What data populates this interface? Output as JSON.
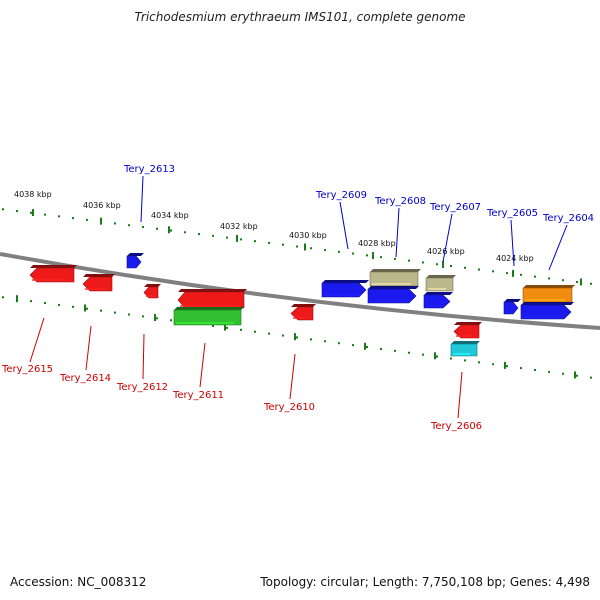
{
  "title": "Trichodesmium erythraeum IMS101, complete genome",
  "footer": {
    "accession": "Accession: NC_008312",
    "summary": "Topology: circular; Length: 7,750,108 bp; Genes: 4,498"
  },
  "colors": {
    "backbone": "#808080",
    "upper_label": "#0000cc",
    "lower_label": "#cc0000",
    "ruler": "#1a7a1a"
  },
  "ruler_labels": [
    {
      "text": "4038 kbp"
    },
    {
      "text": "4036 kbp"
    },
    {
      "text": "4034 kbp"
    },
    {
      "text": "4032 kbp"
    },
    {
      "text": "4030 kbp"
    },
    {
      "text": "4028 kbp"
    },
    {
      "text": "4026 kbp"
    },
    {
      "text": "4024 kbp"
    }
  ],
  "genes": [
    {
      "id": "Tery_2613",
      "color": "#1a1aee"
    },
    {
      "id": "Tery_2609",
      "color": "#1a1aee"
    },
    {
      "id": "Tery_2608",
      "color": "#bdb78c"
    },
    {
      "id": "Tery_2607",
      "color": "#bdb78c"
    },
    {
      "id": "Tery_2605",
      "color": "#1a1aee"
    },
    {
      "id": "Tery_2604",
      "color": "#f08c10"
    },
    {
      "id": "Tery_2615",
      "color": "#ee1a1a"
    },
    {
      "id": "Tery_2614",
      "color": "#ee1a1a"
    },
    {
      "id": "Tery_2612",
      "color": "#ee1a1a"
    },
    {
      "id": "Tery_2611",
      "color": "#ee1a1a"
    },
    {
      "id": "Tery_2610",
      "color": "#ee1a1a"
    },
    {
      "id": "Tery_2606",
      "color": "#ee1a1a"
    }
  ],
  "unlabeled_features": [
    {
      "color": "#1a1aee"
    },
    {
      "color": "#1a1aee"
    },
    {
      "color": "#1a1aee"
    },
    {
      "color": "#30c030"
    },
    {
      "color": "#20c8d8"
    }
  ]
}
